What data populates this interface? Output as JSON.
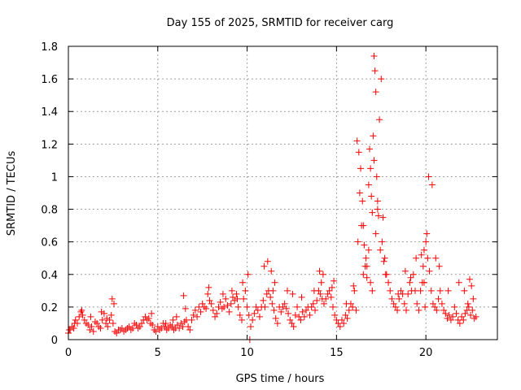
{
  "chart_data": {
    "type": "scatter",
    "title": "Day 155 of 2025, SRMTID for receiver carg",
    "xlabel": "GPS time / hours",
    "ylabel": "SRMTID / TECUs",
    "xlim": [
      0,
      24
    ],
    "ylim": [
      0,
      1.8
    ],
    "xticks": [
      0,
      5,
      10,
      15,
      20
    ],
    "xtick_labels": [
      "0",
      "5",
      "10",
      "15",
      "20"
    ],
    "yticks": [
      0,
      0.2,
      0.4,
      0.6,
      0.8,
      1,
      1.2,
      1.4,
      1.6,
      1.8
    ],
    "ytick_labels": [
      "0",
      "0.2",
      "0.4",
      "0.6",
      "0.8",
      "1",
      "1.2",
      "1.4",
      "1.6",
      "1.8"
    ],
    "grid": true,
    "marker": "+",
    "series": [
      {
        "name": "SRMTID",
        "color": "#ff0000",
        "x": [
          0.0,
          0.1,
          0.2,
          0.3,
          0.4,
          0.5,
          0.6,
          0.7,
          0.8,
          0.9,
          1.0,
          1.1,
          1.2,
          1.3,
          1.4,
          1.5,
          1.6,
          1.7,
          1.8,
          1.9,
          2.0,
          2.1,
          2.2,
          2.3,
          2.4,
          2.5,
          2.6,
          2.7,
          2.8,
          2.9,
          3.0,
          3.1,
          3.2,
          3.3,
          3.4,
          3.5,
          3.6,
          3.7,
          3.8,
          3.9,
          4.0,
          4.1,
          4.2,
          4.3,
          4.4,
          4.5,
          4.6,
          4.7,
          4.8,
          4.9,
          5.0,
          5.1,
          5.2,
          5.3,
          5.4,
          5.5,
          5.6,
          5.7,
          5.8,
          5.9,
          6.0,
          6.1,
          6.2,
          6.3,
          6.4,
          6.5,
          6.6,
          6.7,
          6.8,
          6.9,
          7.0,
          7.1,
          7.2,
          7.3,
          7.4,
          7.5,
          7.6,
          7.7,
          7.8,
          7.9,
          8.0,
          8.1,
          8.2,
          8.3,
          8.4,
          8.5,
          8.6,
          8.7,
          8.8,
          8.9,
          9.0,
          9.1,
          9.2,
          9.3,
          9.4,
          9.5,
          9.6,
          9.7,
          9.8,
          9.9,
          10.0,
          10.1,
          10.2,
          10.3,
          10.4,
          10.5,
          10.6,
          10.7,
          10.8,
          10.9,
          11.0,
          11.1,
          11.2,
          11.3,
          11.4,
          11.5,
          11.6,
          11.7,
          11.8,
          11.9,
          12.0,
          12.1,
          12.2,
          12.3,
          12.4,
          12.5,
          12.6,
          12.7,
          12.8,
          12.9,
          13.0,
          13.1,
          13.2,
          13.3,
          13.4,
          13.5,
          13.6,
          13.7,
          13.8,
          13.9,
          14.0,
          14.1,
          14.2,
          14.3,
          14.4,
          14.5,
          14.6,
          14.7,
          14.8,
          14.9,
          15.0,
          15.1,
          15.2,
          15.3,
          15.4,
          15.5,
          15.6,
          15.7,
          15.8,
          15.9,
          16.0,
          16.1,
          16.2,
          16.3,
          16.4,
          16.5,
          16.6,
          16.7,
          16.8,
          16.9,
          17.0,
          17.1,
          17.2,
          17.3,
          17.4,
          17.5,
          17.6,
          17.7,
          17.8,
          17.9,
          18.0,
          18.1,
          18.2,
          18.3,
          18.4,
          18.5,
          18.6,
          18.7,
          18.8,
          18.9,
          19.0,
          19.1,
          19.2,
          19.3,
          19.4,
          19.5,
          19.6,
          19.7,
          19.8,
          19.9,
          20.0,
          20.1,
          20.2,
          20.3,
          20.4,
          20.5,
          20.6,
          20.7,
          20.8,
          20.9,
          21.0,
          21.1,
          21.2,
          21.3,
          21.4,
          21.5,
          21.6,
          21.7,
          21.8,
          21.9,
          22.0,
          22.1,
          22.2,
          22.3,
          22.4,
          22.5,
          22.6,
          22.7,
          22.8,
          0.05,
          0.35,
          0.75,
          1.25,
          1.85,
          2.15,
          2.45,
          2.55,
          4.65,
          5.45,
          5.85,
          6.05,
          6.45,
          6.55,
          7.85,
          8.65,
          9.15,
          9.45,
          9.75,
          10.05,
          10.15,
          10.95,
          11.15,
          11.35,
          11.45,
          11.55,
          12.25,
          12.55,
          13.05,
          13.75,
          14.05,
          14.15,
          14.25,
          14.75,
          14.85,
          15.55,
          15.95,
          16.15,
          16.25,
          16.35,
          16.45,
          16.5,
          16.55,
          16.65,
          16.7,
          16.8,
          16.85,
          16.9,
          16.95,
          17.0,
          17.05,
          17.1,
          17.15,
          17.2,
          17.25,
          17.3,
          17.35,
          17.45,
          17.55,
          17.65,
          17.75,
          18.45,
          18.85,
          19.15,
          19.45,
          19.75,
          19.85,
          19.9,
          19.95,
          20.05,
          20.15,
          20.35,
          20.55,
          20.75,
          21.25,
          21.85,
          22.15,
          22.35,
          22.45,
          22.55,
          22.65
        ],
        "y": [
          0.04,
          0.06,
          0.08,
          0.07,
          0.12,
          0.1,
          0.14,
          0.17,
          0.15,
          0.12,
          0.1,
          0.09,
          0.06,
          0.08,
          0.05,
          0.11,
          0.1,
          0.08,
          0.07,
          0.12,
          0.16,
          0.1,
          0.08,
          0.12,
          0.15,
          0.1,
          0.05,
          0.04,
          0.06,
          0.06,
          0.07,
          0.05,
          0.06,
          0.07,
          0.08,
          0.06,
          0.07,
          0.1,
          0.09,
          0.07,
          0.08,
          0.1,
          0.12,
          0.14,
          0.12,
          0.13,
          0.1,
          0.09,
          0.06,
          0.05,
          0.08,
          0.06,
          0.07,
          0.1,
          0.08,
          0.06,
          0.07,
          0.09,
          0.08,
          0.06,
          0.07,
          0.09,
          0.07,
          0.1,
          0.08,
          0.11,
          0.12,
          0.08,
          0.06,
          0.12,
          0.15,
          0.18,
          0.14,
          0.2,
          0.17,
          0.22,
          0.2,
          0.19,
          0.28,
          0.24,
          0.22,
          0.18,
          0.14,
          0.16,
          0.2,
          0.23,
          0.19,
          0.2,
          0.25,
          0.21,
          0.17,
          0.22,
          0.26,
          0.24,
          0.28,
          0.2,
          0.15,
          0.12,
          0.25,
          0.3,
          0.2,
          0.15,
          0.08,
          0.12,
          0.16,
          0.2,
          0.18,
          0.14,
          0.2,
          0.24,
          0.2,
          0.28,
          0.3,
          0.26,
          0.22,
          0.18,
          0.13,
          0.1,
          0.2,
          0.17,
          0.2,
          0.22,
          0.19,
          0.16,
          0.12,
          0.1,
          0.08,
          0.15,
          0.2,
          0.14,
          0.12,
          0.17,
          0.14,
          0.18,
          0.2,
          0.15,
          0.2,
          0.22,
          0.18,
          0.24,
          0.3,
          0.28,
          0.25,
          0.22,
          0.25,
          0.28,
          0.3,
          0.26,
          0.2,
          0.15,
          0.12,
          0.1,
          0.08,
          0.12,
          0.1,
          0.15,
          0.13,
          0.18,
          0.22,
          0.2,
          0.3,
          0.18,
          0.6,
          0.9,
          0.7,
          0.4,
          0.45,
          0.38,
          0.55,
          0.35,
          0.3,
          1.1,
          0.65,
          0.85,
          1.35,
          1.6,
          0.75,
          0.5,
          0.4,
          0.35,
          0.3,
          0.25,
          0.22,
          0.2,
          0.18,
          0.25,
          0.3,
          0.28,
          0.22,
          0.18,
          0.28,
          0.35,
          0.3,
          0.4,
          0.3,
          0.22,
          0.18,
          0.3,
          0.35,
          0.55,
          0.6,
          0.5,
          0.42,
          0.3,
          0.22,
          0.2,
          0.18,
          0.25,
          0.3,
          0.22,
          0.18,
          0.16,
          0.13,
          0.15,
          0.12,
          0.14,
          0.2,
          0.16,
          0.12,
          0.1,
          0.14,
          0.12,
          0.16,
          0.18,
          0.2,
          0.15,
          0.18,
          0.13,
          0.14,
          0.06,
          0.1,
          0.18,
          0.14,
          0.17,
          0.13,
          0.25,
          0.22,
          0.16,
          0.1,
          0.12,
          0.14,
          0.27,
          0.19,
          0.32,
          0.28,
          0.3,
          0.25,
          0.35,
          0.4,
          0.0,
          0.45,
          0.48,
          0.42,
          0.3,
          0.35,
          0.3,
          0.28,
          0.26,
          0.3,
          0.42,
          0.35,
          0.4,
          0.32,
          0.36,
          0.22,
          0.33,
          1.22,
          1.15,
          1.05,
          0.85,
          0.7,
          0.58,
          0.5,
          0.45,
          0.95,
          1.17,
          1.05,
          0.88,
          0.78,
          1.25,
          1.74,
          1.65,
          1.52,
          1.0,
          0.8,
          0.76,
          0.55,
          0.6,
          0.48,
          0.4,
          0.28,
          0.42,
          0.38,
          0.5,
          0.52,
          0.45,
          0.35,
          0.2,
          0.65,
          1.0,
          0.95,
          0.5,
          0.45,
          0.3,
          0.35,
          0.3,
          0.22,
          0.37,
          0.33,
          0.25
        ]
      }
    ]
  }
}
